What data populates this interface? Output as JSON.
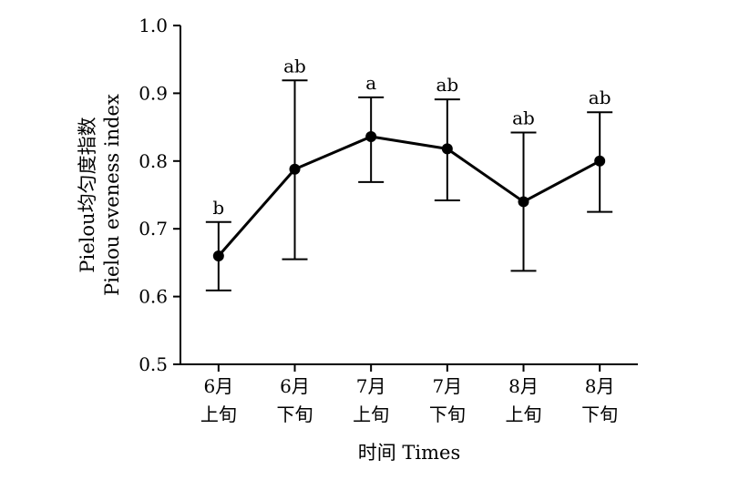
{
  "chart_data": {
    "type": "line",
    "categories": [
      [
        "6月",
        "上旬"
      ],
      [
        "6月",
        "下旬"
      ],
      [
        "7月",
        "上旬"
      ],
      [
        "7月",
        "下旬"
      ],
      [
        "8月",
        "上旬"
      ],
      [
        "8月",
        "下旬"
      ]
    ],
    "series": [
      {
        "values": [
          0.66,
          0.788,
          0.836,
          0.818,
          0.74,
          0.8
        ],
        "error_lower": [
          0.609,
          0.655,
          0.769,
          0.742,
          0.638,
          0.725
        ],
        "error_upper": [
          0.71,
          0.919,
          0.894,
          0.891,
          0.842,
          0.872
        ],
        "significance_labels": [
          "b",
          "ab",
          "a",
          "ab",
          "ab",
          "ab"
        ]
      }
    ],
    "xlabel": "时间 Times",
    "ylabel_lines": [
      "Pielou均匀度指数",
      "Pielou eveness index"
    ],
    "ylim": [
      0.5,
      1.0
    ],
    "yticks": [
      0.5,
      0.6,
      0.7,
      0.8,
      0.9,
      1.0
    ],
    "ytick_labels": [
      "0.5",
      "0.6",
      "0.7",
      "0.8",
      "0.9",
      "1.0"
    ],
    "grid": false,
    "legend": "none"
  }
}
